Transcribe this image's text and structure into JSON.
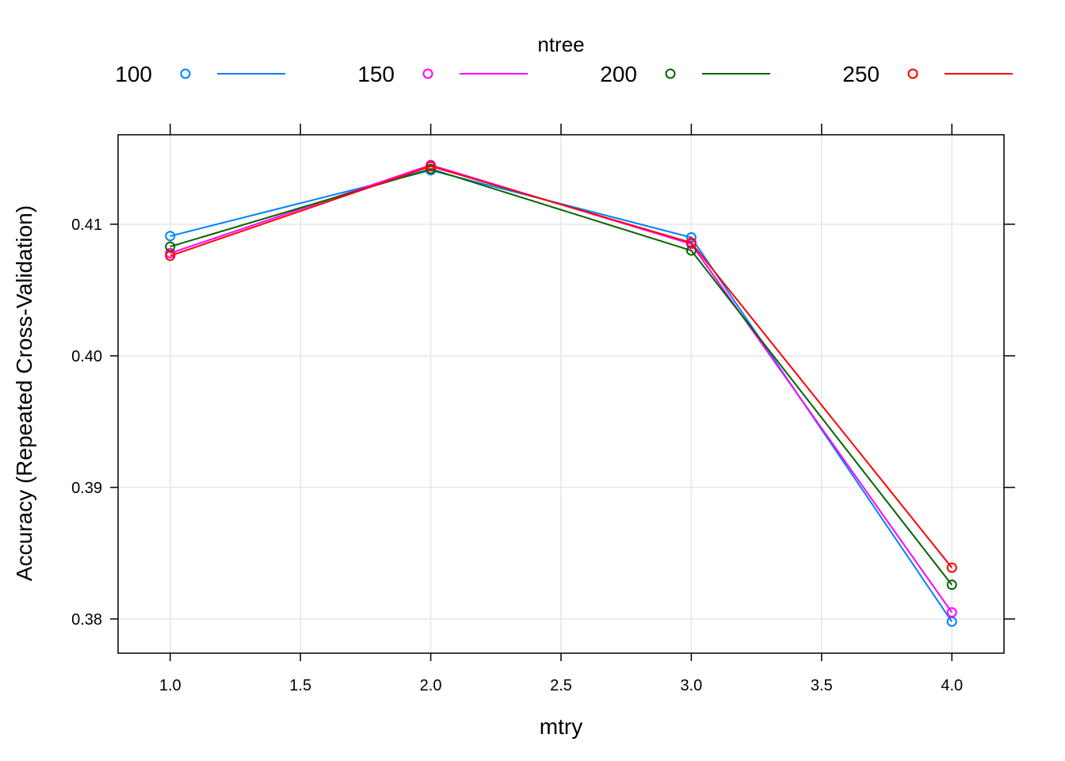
{
  "chart_data": {
    "type": "line",
    "xlabel": "mtry",
    "ylabel": "Accuracy (Repeated Cross-Validation)",
    "xlim": [
      0.8,
      4.2
    ],
    "ylim": [
      0.3774,
      0.4168
    ],
    "x": [
      1.0,
      2.0,
      3.0,
      4.0
    ],
    "x_ticks": [
      1.0,
      1.5,
      2.0,
      2.5,
      3.0,
      3.5,
      4.0
    ],
    "x_tick_labels": [
      "1.0",
      "1.5",
      "2.0",
      "2.5",
      "3.0",
      "3.5",
      "4.0"
    ],
    "y_ticks": [
      0.38,
      0.39,
      0.4,
      0.41
    ],
    "y_tick_labels": [
      "0.38",
      "0.39",
      "0.40",
      "0.41"
    ],
    "grid": true,
    "legend": {
      "title": "ntree",
      "position": "top"
    },
    "series": [
      {
        "name": "100",
        "color": "#0080FF",
        "values": [
          0.4091,
          0.4141,
          0.409,
          0.3798
        ]
      },
      {
        "name": "150",
        "color": "#FF00FF",
        "values": [
          0.4078,
          0.4145,
          0.4085,
          0.3805
        ]
      },
      {
        "name": "200",
        "color": "#006400",
        "values": [
          0.4083,
          0.4142,
          0.408,
          0.3826
        ]
      },
      {
        "name": "250",
        "color": "#FF0000",
        "values": [
          0.4076,
          0.4144,
          0.4086,
          0.3839
        ]
      }
    ]
  }
}
